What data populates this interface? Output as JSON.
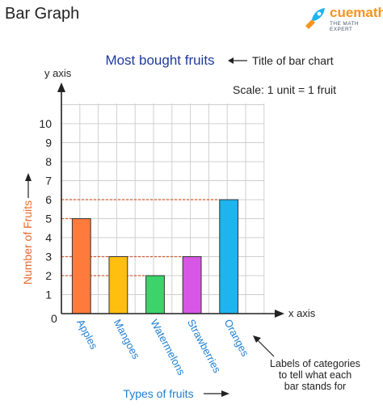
{
  "page": {
    "heading": "Bar Graph",
    "logo": {
      "name": "cuemath",
      "tagline": "THE MATH EXPERT"
    }
  },
  "annotations": {
    "title_pointer": "Title of bar chart",
    "scale": "Scale: 1 unit = 1 fruit",
    "y_axis_name": "y axis",
    "x_axis_name": "x axis",
    "category_labels_note": [
      "Labels of categories",
      "to tell what each",
      "bar stands for"
    ],
    "origin": "0"
  },
  "colors": {
    "title": "#1f3b9b",
    "axis_label": "#e8682c",
    "category_label": "#1f7fd1",
    "grid": "#cfcfcf",
    "dashed_guide": "#e05a2a"
  },
  "chart_data": {
    "type": "bar",
    "title": "Most bought fruits",
    "xlabel": "Types of fruits",
    "ylabel": "Number of Fruits",
    "categories": [
      "Apples",
      "Mangoes",
      "Watermelons",
      "Strawberries",
      "Oranges"
    ],
    "values": [
      5,
      3,
      2,
      3,
      6
    ],
    "bar_colors": [
      "#ff7a3d",
      "#ffbf0f",
      "#3cd46a",
      "#d657e3",
      "#1fb3ef"
    ],
    "yticks": [
      1,
      2,
      3,
      4,
      5,
      6,
      7,
      8,
      9,
      10
    ],
    "ylim": [
      0,
      11
    ],
    "grid": true,
    "dashed_guides": [
      2,
      3,
      5,
      6
    ]
  }
}
